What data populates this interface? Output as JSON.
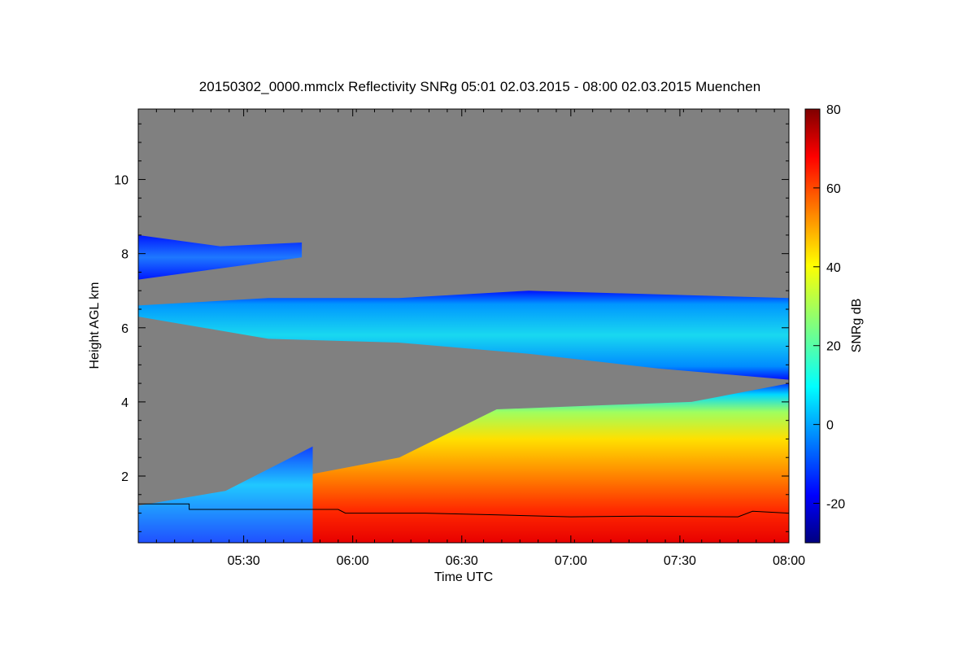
{
  "chart_data": {
    "type": "heatmap",
    "title": "20150302_0000.mmclx Reflectivity SNRg   05:01 02.03.2015 - 08:00 02.03.2015 Muenchen",
    "xlabel": "Time UTC",
    "ylabel": "Height AGL km",
    "colorbar_label": "SNRg dB",
    "x_range_minutes": [
      301,
      480
    ],
    "y_range_km": [
      0.2,
      11.9
    ],
    "x_ticks": [
      {
        "label": "05:30",
        "minutes": 330
      },
      {
        "label": "06:00",
        "minutes": 360
      },
      {
        "label": "06:30",
        "minutes": 390
      },
      {
        "label": "07:00",
        "minutes": 420
      },
      {
        "label": "07:30",
        "minutes": 450
      },
      {
        "label": "08:00",
        "minutes": 480
      }
    ],
    "y_ticks": [
      {
        "label": "2",
        "value": 2
      },
      {
        "label": "4",
        "value": 4
      },
      {
        "label": "6",
        "value": 6
      },
      {
        "label": "8",
        "value": 8
      },
      {
        "label": "10",
        "value": 10
      }
    ],
    "colorbar": {
      "range": [
        -30,
        80
      ],
      "ticks": [
        {
          "label": "-20",
          "value": -20
        },
        {
          "label": "0",
          "value": 0
        },
        {
          "label": "20",
          "value": 20
        },
        {
          "label": "40",
          "value": 40
        },
        {
          "label": "60",
          "value": 60
        },
        {
          "label": "80",
          "value": 80
        }
      ],
      "colormap": "jet"
    },
    "background_color": "#808080",
    "layers": [
      {
        "name": "upper cirrus",
        "x_start": 301,
        "x_end": 346,
        "base_km": [
          7.3,
          7.6,
          7.9
        ],
        "top_km": [
          8.5,
          8.2,
          8.3
        ],
        "snr_db": -5
      },
      {
        "name": "mid-level cloud",
        "x_start": 301,
        "x_end": 480,
        "base_km": [
          6.3,
          5.7,
          5.6,
          5.3,
          4.9,
          4.6
        ],
        "top_km": [
          6.6,
          6.8,
          6.8,
          7.0,
          6.9,
          6.8
        ],
        "snr_db": 5
      },
      {
        "name": "precipitation",
        "x_start": 346,
        "x_end": 480,
        "base_km": [
          0.2,
          0.2,
          0.2,
          0.2,
          0.2,
          0.2
        ],
        "top_km": [
          2.0,
          2.5,
          3.8,
          3.9,
          4.0,
          4.5
        ],
        "snr_db": 45
      },
      {
        "name": "low drizzle",
        "x_start": 301,
        "x_end": 349,
        "base_km": [
          0.2,
          0.2,
          0.2
        ],
        "top_km": [
          1.2,
          1.6,
          2.8
        ],
        "snr_db": 0
      }
    ],
    "boundary_line_km": [
      {
        "minutes": 301,
        "km": 1.25
      },
      {
        "minutes": 315,
        "km": 1.25
      },
      {
        "minutes": 315,
        "km": 1.1
      },
      {
        "minutes": 356,
        "km": 1.1
      },
      {
        "minutes": 358,
        "km": 1.0
      },
      {
        "minutes": 380,
        "km": 1.0
      },
      {
        "minutes": 400,
        "km": 0.95
      },
      {
        "minutes": 420,
        "km": 0.9
      },
      {
        "minutes": 440,
        "km": 0.92
      },
      {
        "minutes": 466,
        "km": 0.9
      },
      {
        "minutes": 470,
        "km": 1.05
      },
      {
        "minutes": 480,
        "km": 1.0
      }
    ]
  }
}
